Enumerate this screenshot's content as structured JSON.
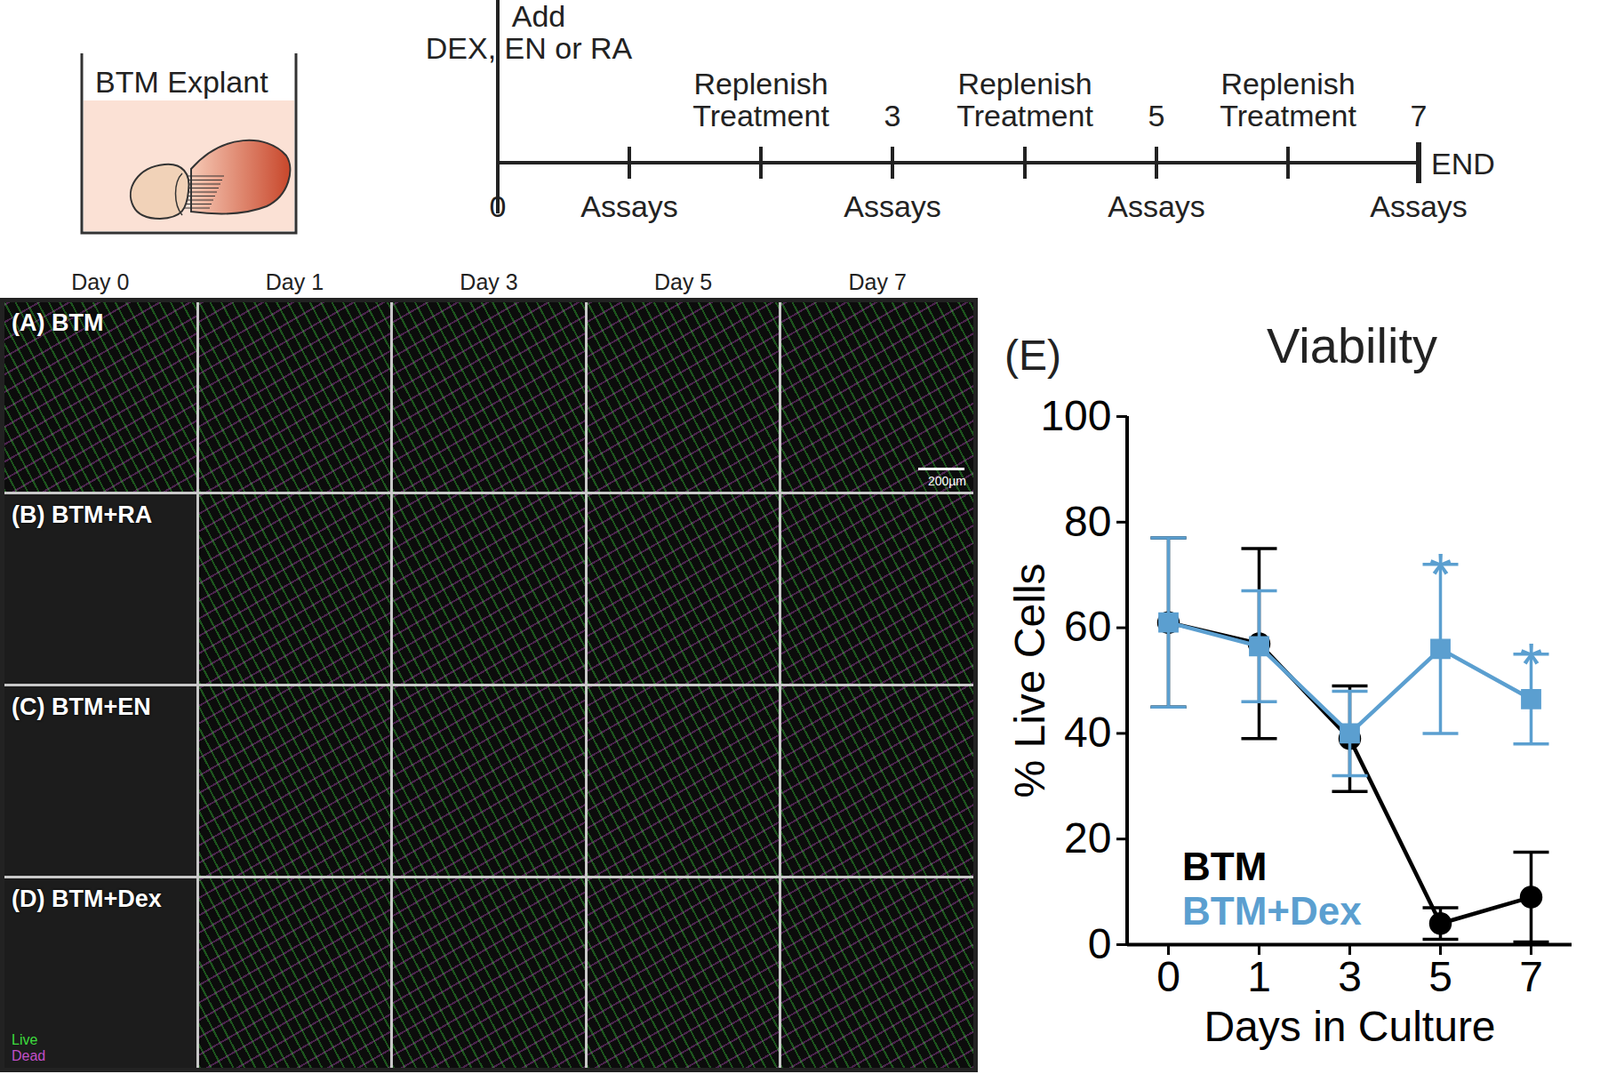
{
  "schematic": {
    "explant_label": "BTM Explant",
    "timeline": [
      {
        "above": [
          "Add",
          "DEX, EN or RA"
        ],
        "below": "0"
      },
      {
        "below": "Assays"
      },
      {
        "above": [
          "Replenish",
          "Treatment"
        ]
      },
      {
        "above": [
          "3"
        ],
        "below": "Assays"
      },
      {
        "above": [
          "Replenish",
          "Treatment"
        ]
      },
      {
        "above": [
          "5"
        ],
        "below": "Assays"
      },
      {
        "above": [
          "Replenish",
          "Treatment"
        ]
      },
      {
        "above": [
          "7"
        ],
        "below": "Assays",
        "end": "END"
      }
    ]
  },
  "panels": {
    "columns": [
      "Day 0",
      "Day 1",
      "Day 3",
      "Day 5",
      "Day 7"
    ],
    "rows": [
      {
        "label": "(A) BTM",
        "images": [
          true,
          true,
          true,
          true,
          true
        ]
      },
      {
        "label": "(B) BTM+RA",
        "images": [
          false,
          true,
          true,
          true,
          true
        ]
      },
      {
        "label": "(C) BTM+EN",
        "images": [
          false,
          true,
          true,
          true,
          true
        ]
      },
      {
        "label": "(D) BTM+Dex",
        "images": [
          false,
          true,
          true,
          true,
          true
        ]
      }
    ],
    "scale_bar": "200µm",
    "channel_legend": [
      {
        "name": "Live",
        "color": "#3ddc3d"
      },
      {
        "name": "Dead",
        "color": "#c24fc8"
      }
    ]
  },
  "chart_data": {
    "type": "line",
    "panel_label": "(E)",
    "title": "Viability",
    "x_label": "Days in Culture",
    "y_label": "% Live Cells",
    "categories": [
      "0",
      "1",
      "3",
      "5",
      "7"
    ],
    "ylim": [
      0,
      100
    ],
    "yticks": [
      0,
      20,
      40,
      60,
      80,
      100
    ],
    "legend": "lower left",
    "series": [
      {
        "name": "BTM",
        "color": "#000000",
        "marker": "circle",
        "values": [
          61,
          57,
          39,
          4,
          9
        ],
        "errors": [
          16,
          18,
          10,
          3,
          8.5
        ]
      },
      {
        "name": "BTM+Dex",
        "color": "#5b9fd0",
        "marker": "square",
        "values": [
          61,
          56.5,
          40,
          56,
          46.5
        ],
        "errors": [
          16,
          10.5,
          8,
          16,
          8.5
        ]
      }
    ],
    "annotations": [
      {
        "x": "5",
        "text": "*",
        "series": "BTM+Dex"
      },
      {
        "x": "7",
        "text": "*",
        "series": "BTM+Dex"
      }
    ]
  }
}
